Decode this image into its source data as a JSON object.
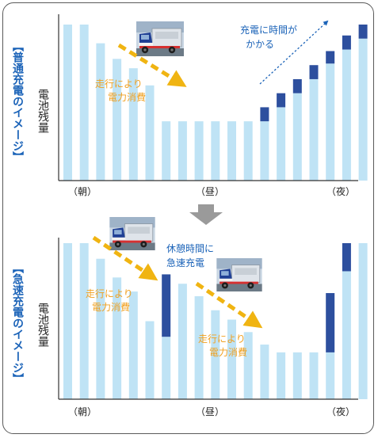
{
  "chart_data": [
    {
      "type": "bar",
      "side_label": "【普通充電のイメージ】",
      "ylabel": "電池残量",
      "x_tick_labels": [
        "（朝）",
        "（昼）",
        "（夜）"
      ],
      "annotations": [
        {
          "text": [
            "走行により",
            "電力消費"
          ],
          "color": "#f0a020"
        },
        {
          "text": [
            "充電に時間が",
            "かかる"
          ],
          "color": "#1b63b8"
        }
      ],
      "ylim": [
        0,
        100
      ],
      "bars": [
        {
          "base": 100,
          "charge": 0
        },
        {
          "base": 100,
          "charge": 0
        },
        {
          "base": 88,
          "charge": 0
        },
        {
          "base": 78,
          "charge": 0
        },
        {
          "base": 72,
          "charge": 0
        },
        {
          "base": 61,
          "charge": 0
        },
        {
          "base": 38,
          "charge": 0
        },
        {
          "base": 38,
          "charge": 0
        },
        {
          "base": 38,
          "charge": 0
        },
        {
          "base": 38,
          "charge": 0
        },
        {
          "base": 38,
          "charge": 0
        },
        {
          "base": 38,
          "charge": 0
        },
        {
          "base": 38,
          "charge": 9
        },
        {
          "base": 47,
          "charge": 9
        },
        {
          "base": 56,
          "charge": 9
        },
        {
          "base": 65,
          "charge": 9
        },
        {
          "base": 75,
          "charge": 8
        },
        {
          "base": 84,
          "charge": 9
        },
        {
          "base": 91,
          "charge": 9
        }
      ],
      "colors": {
        "base": "#bfe3f5",
        "charge": "#2d4f9e"
      }
    },
    {
      "type": "bar",
      "side_label": "【急速充電のイメージ】",
      "ylabel": "電池残量",
      "x_tick_labels": [
        "（朝）",
        "（昼）",
        "（夜）"
      ],
      "annotations": [
        {
          "text": [
            "走行により",
            "電力消費"
          ],
          "color": "#f0a020"
        },
        {
          "text": [
            "休憩時間に",
            "急速充電"
          ],
          "color": "#1b63b8"
        },
        {
          "text": [
            "走行により",
            "電力消費"
          ],
          "color": "#f0a020"
        }
      ],
      "ylim": [
        0,
        100
      ],
      "bars": [
        {
          "base": 100,
          "charge": 0
        },
        {
          "base": 100,
          "charge": 0
        },
        {
          "base": 90,
          "charge": 0
        },
        {
          "base": 78,
          "charge": 0
        },
        {
          "base": 69,
          "charge": 0
        },
        {
          "base": 50,
          "charge": 0
        },
        {
          "base": 40,
          "charge": 40
        },
        {
          "base": 74,
          "charge": 0
        },
        {
          "base": 66,
          "charge": 0
        },
        {
          "base": 57,
          "charge": 0
        },
        {
          "base": 51,
          "charge": 0
        },
        {
          "base": 43,
          "charge": 0
        },
        {
          "base": 35,
          "charge": 0
        },
        {
          "base": 30,
          "charge": 0
        },
        {
          "base": 30,
          "charge": 0
        },
        {
          "base": 30,
          "charge": 0
        },
        {
          "base": 30,
          "charge": 38
        },
        {
          "base": 82,
          "charge": 18
        },
        {
          "base": 100,
          "charge": 0
        }
      ],
      "colors": {
        "base": "#bfe3f5",
        "charge": "#2d4f9e"
      }
    }
  ],
  "colors": {
    "frame": "#5a5a5a",
    "divider_arrow": "#9a9a9a",
    "consumption": "#f0a020",
    "charging": "#1b63b8"
  },
  "icons": [
    "truck-photo-icon",
    "down-arrow-icon"
  ]
}
